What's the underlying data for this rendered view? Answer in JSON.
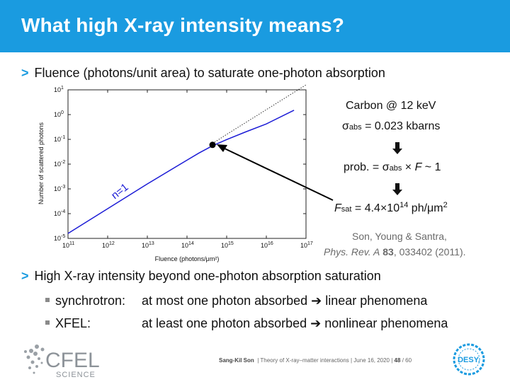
{
  "title": "What high X-ray intensity means?",
  "bullet1": "Fluence (photons/unit area) to saturate one-photon absorption",
  "bullet2": "High X-ray intensity beyond one-photon absorption saturation",
  "sub_items": [
    {
      "label": "synchrotron:",
      "text": "at most one photon absorbed ➔ linear phenomena"
    },
    {
      "label": "XFEL:",
      "text": "at least one photon absorbed ➔ nonlinear phenomena"
    }
  ],
  "rhs": {
    "line1": "Carbon @ 12 keV",
    "sigma_prefix": "σ",
    "sigma_sub": "abs",
    "sigma_value": " = 0.023 kbarns",
    "prob_prefix": "prob. = σ",
    "prob_sub": "abs",
    "prob_mid": " × ",
    "prob_f": "F",
    "prob_suffix": " ~ 1",
    "fsat_f": "F",
    "fsat_sub": "sat",
    "fsat_value": " = 4.4×10",
    "fsat_exp": "14",
    "fsat_unit": " ph/μm",
    "fsat_unit_exp": "2"
  },
  "reference": {
    "authors": "Son, Young & Santra,",
    "journal": "Phys. Rev. A",
    "volume": "83",
    "rest": ", 033402 (2011)."
  },
  "footer": {
    "author": "Sang-Kil Son",
    "info": "|  Theory of X-ray–matter interactions  |  June 16, 2020  |",
    "page": "48",
    "total": "/ 60"
  },
  "logos": {
    "cfel_main": "CFEL",
    "cfel_sub": "SCIENCE",
    "desy": "DESY."
  },
  "colors": {
    "accent": "#1a9be0",
    "curve": "#1c1cd6"
  },
  "chart_data": {
    "type": "line",
    "title": "",
    "xlabel": "Fluence (photons/μm²)",
    "ylabel": "Number of scattered photons",
    "x_scale": "log",
    "y_scale": "log",
    "xlim": [
      100000000000.0,
      1e+17
    ],
    "ylim": [
      1e-05,
      10
    ],
    "x_ticks": [
      "10^11",
      "10^12",
      "10^13",
      "10^14",
      "10^15",
      "10^16",
      "10^17"
    ],
    "y_ticks": [
      "10^-5",
      "10^-4",
      "10^-3",
      "10^-2",
      "10^-1",
      "10^0",
      "10^1"
    ],
    "annotation": "n=1",
    "series": [
      {
        "style": "solid",
        "color": "#1c1cd6",
        "x": [
          100000000000.0,
          1000000000000.0,
          10000000000000.0,
          100000000000000.0,
          200000000000000.0,
          440000000000000.0,
          1000000000000000.0,
          3000000000000000.0,
          1e+16,
          5e+16
        ],
        "y": [
          1.58e-05,
          0.000158,
          0.00158,
          0.0145,
          0.028,
          0.055,
          0.098,
          0.2,
          0.42,
          1.5
        ]
      },
      {
        "style": "dotted",
        "color": "#333333",
        "x": [
          440000000000000.0,
          1000000000000000.0,
          1e+16,
          1e+17
        ],
        "y": [
          0.068,
          0.158,
          1.58,
          15.8
        ]
      }
    ],
    "marker": {
      "x": 440000000000000.0,
      "y": 0.06
    }
  }
}
